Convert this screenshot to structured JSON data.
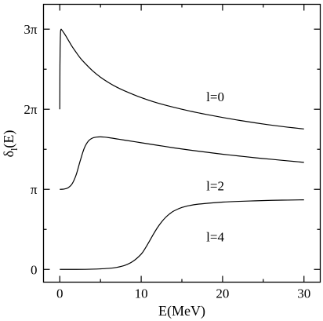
{
  "chart_data": {
    "type": "line",
    "title": "",
    "xlabel": "E(MeV)",
    "ylabel_main": "δ",
    "ylabel_sub": "l",
    "ylabel_tail": "(E)",
    "xlim": [
      -2,
      32
    ],
    "ylim": [
      -0.5,
      10.4
    ],
    "grid": false,
    "legend": "none",
    "x_ticks": [
      {
        "value": 0,
        "label": "0"
      },
      {
        "value": 10,
        "label": "10"
      },
      {
        "value": 20,
        "label": "20"
      },
      {
        "value": 30,
        "label": "30"
      }
    ],
    "y_ticks": [
      {
        "value": 0,
        "label": "0"
      },
      {
        "value": 3.14159,
        "label": "π"
      },
      {
        "value": 6.28319,
        "label": "2π"
      },
      {
        "value": 9.42478,
        "label": "3π"
      }
    ],
    "series": [
      {
        "name": "l=0",
        "x": [
          0.0,
          0.01,
          0.02,
          0.04,
          0.07,
          0.1,
          0.15,
          0.2,
          0.3,
          0.5,
          0.7,
          1.0,
          1.5,
          2.0,
          2.5,
          3.0,
          4.0,
          5.0,
          6.0,
          7.0,
          8.0,
          10.0,
          12.0,
          14.0,
          16.0,
          18.0,
          20.0,
          22.0,
          24.0,
          26.0,
          28.0,
          30.0
        ],
        "y": [
          6.28,
          7.2,
          8.0,
          8.6,
          9.1,
          9.35,
          9.42,
          9.41,
          9.37,
          9.28,
          9.18,
          9.02,
          8.75,
          8.52,
          8.3,
          8.12,
          7.8,
          7.54,
          7.33,
          7.15,
          7.0,
          6.74,
          6.53,
          6.36,
          6.21,
          6.08,
          5.96,
          5.85,
          5.75,
          5.66,
          5.58,
          5.51
        ]
      },
      {
        "name": "l=2",
        "x": [
          0.0,
          0.5,
          1.0,
          1.5,
          2.0,
          2.5,
          3.0,
          3.5,
          4.0,
          4.5,
          5.0,
          5.5,
          6.0,
          7.0,
          8.0,
          10.0,
          12.0,
          14.0,
          16.0,
          18.0,
          20.0,
          22.0,
          24.0,
          26.0,
          28.0,
          30.0
        ],
        "y": [
          3.14,
          3.15,
          3.2,
          3.35,
          3.7,
          4.25,
          4.75,
          5.03,
          5.15,
          5.19,
          5.2,
          5.19,
          5.17,
          5.12,
          5.07,
          4.97,
          4.87,
          4.77,
          4.68,
          4.6,
          4.52,
          4.45,
          4.38,
          4.32,
          4.26,
          4.2
        ]
      },
      {
        "name": "l=4",
        "x": [
          0.0,
          2.0,
          4.0,
          6.0,
          7.0,
          8.0,
          9.0,
          10.0,
          10.5,
          11.0,
          11.5,
          12.0,
          12.5,
          13.0,
          13.5,
          14.0,
          15.0,
          16.0,
          17.0,
          18.0,
          20.0,
          22.0,
          24.0,
          26.0,
          28.0,
          30.0
        ],
        "y": [
          0.0,
          0.0,
          0.01,
          0.04,
          0.08,
          0.16,
          0.32,
          0.6,
          0.83,
          1.1,
          1.38,
          1.64,
          1.86,
          2.04,
          2.18,
          2.29,
          2.43,
          2.51,
          2.56,
          2.59,
          2.64,
          2.67,
          2.69,
          2.71,
          2.72,
          2.73
        ]
      }
    ],
    "annotations": [
      {
        "text": "l=0",
        "x": 18.0,
        "y": 6.6
      },
      {
        "text": "l=2",
        "x": 18.0,
        "y": 3.1
      },
      {
        "text": "l=4",
        "x": 18.0,
        "y": 1.1
      }
    ]
  }
}
